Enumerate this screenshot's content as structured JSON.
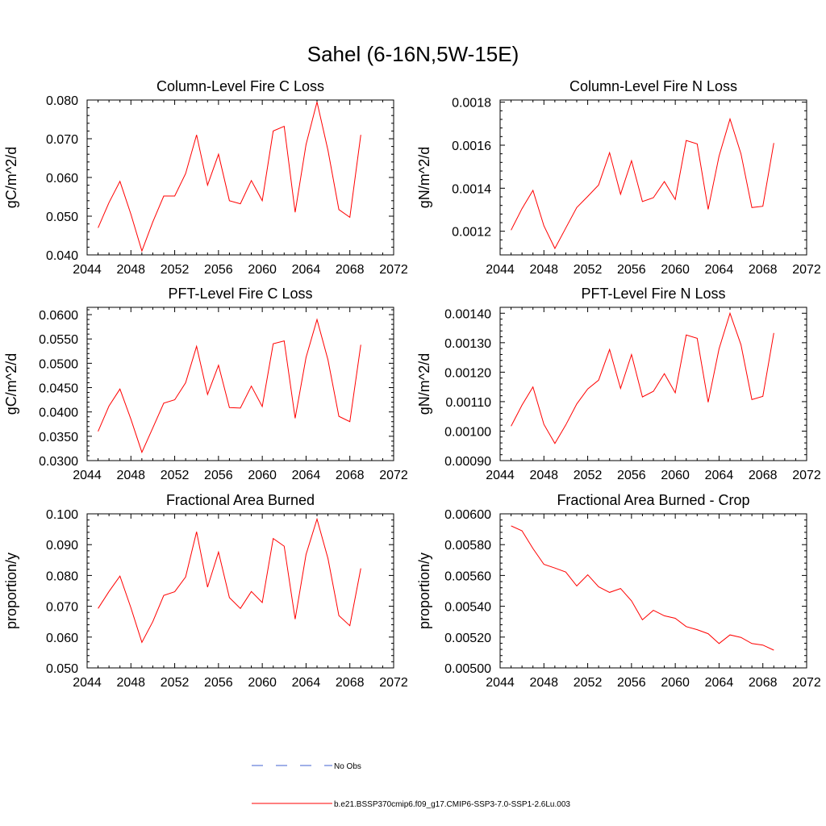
{
  "figure": {
    "title": "Sahel (6-16N,5W-15E)"
  },
  "legend": {
    "items": [
      {
        "label": "No Obs",
        "color": "#4060d0",
        "dash": true
      },
      {
        "label": "b.e21.BSSP370cmip6.f09_g17.CMIP6-SSP3-7.0-SSP1-2.6Lu.003",
        "color": "#ff0000",
        "dash": false
      }
    ]
  },
  "chart_data": [
    {
      "type": "line",
      "title": "Column-Level Fire C Loss",
      "xlabel": "",
      "ylabel": "gC/m^2/d",
      "xlim": [
        2044,
        2072
      ],
      "ylim": [
        0.04,
        0.08
      ],
      "xticks": [
        "2044",
        "2048",
        "2052",
        "2056",
        "2060",
        "2064",
        "2068",
        "2072"
      ],
      "yticks": [
        "0.040",
        "0.050",
        "0.060",
        "0.070",
        "0.080"
      ],
      "grid": false,
      "color": "#ff0000",
      "x": [
        2045,
        2046,
        2047,
        2048,
        2049,
        2050,
        2051,
        2052,
        2053,
        2054,
        2055,
        2056,
        2057,
        2058,
        2059,
        2060,
        2061,
        2062,
        2063,
        2064,
        2065,
        2066,
        2067,
        2068,
        2069
      ],
      "values": [
        0.047,
        0.0535,
        0.059,
        0.0505,
        0.041,
        0.0485,
        0.0552,
        0.0552,
        0.061,
        0.071,
        0.058,
        0.066,
        0.054,
        0.0532,
        0.0592,
        0.054,
        0.072,
        0.0732,
        0.051,
        0.0685,
        0.0795,
        0.067,
        0.0517,
        0.0497,
        0.071
      ]
    },
    {
      "type": "line",
      "title": "Column-Level Fire N Loss",
      "xlabel": "",
      "ylabel": "gN/m^2/d",
      "xlim": [
        2044,
        2072
      ],
      "ylim": [
        0.00109,
        0.00181
      ],
      "xticks": [
        "2044",
        "2048",
        "2052",
        "2056",
        "2060",
        "2064",
        "2068",
        "2072"
      ],
      "yticks": [
        "0.0012",
        "0.0014",
        "0.0016",
        "0.0018"
      ],
      "ytick_values": [
        0.0012,
        0.0014,
        0.0016,
        0.0018
      ],
      "grid": false,
      "color": "#ff0000",
      "x": [
        2045,
        2046,
        2047,
        2048,
        2049,
        2050,
        2051,
        2052,
        2053,
        2054,
        2055,
        2056,
        2057,
        2058,
        2059,
        2060,
        2061,
        2062,
        2063,
        2064,
        2065,
        2066,
        2067,
        2068,
        2069
      ],
      "values": [
        0.001205,
        0.001305,
        0.00139,
        0.001225,
        0.00112,
        0.001215,
        0.00131,
        0.001362,
        0.001415,
        0.001565,
        0.001372,
        0.001528,
        0.001338,
        0.001356,
        0.001431,
        0.001348,
        0.001622,
        0.001606,
        0.001302,
        0.001549,
        0.001722,
        0.00156,
        0.00131,
        0.001316,
        0.00161
      ]
    },
    {
      "type": "line",
      "title": "PFT-Level Fire C Loss",
      "xlabel": "",
      "ylabel": "gC/m^2/d",
      "xlim": [
        2044,
        2072
      ],
      "ylim": [
        0.03,
        0.0615
      ],
      "xticks": [
        "2044",
        "2048",
        "2052",
        "2056",
        "2060",
        "2064",
        "2068",
        "2072"
      ],
      "yticks": [
        "0.0300",
        "0.0350",
        "0.0400",
        "0.0450",
        "0.0500",
        "0.0550",
        "0.0600"
      ],
      "grid": false,
      "color": "#ff0000",
      "x": [
        2045,
        2046,
        2047,
        2048,
        2049,
        2050,
        2051,
        2052,
        2053,
        2054,
        2055,
        2056,
        2057,
        2058,
        2059,
        2060,
        2061,
        2062,
        2063,
        2064,
        2065,
        2066,
        2067,
        2068,
        2069
      ],
      "values": [
        0.036,
        0.0412,
        0.0447,
        0.0385,
        0.0317,
        0.0367,
        0.0418,
        0.0425,
        0.046,
        0.0535,
        0.0436,
        0.0496,
        0.0409,
        0.0408,
        0.0453,
        0.0411,
        0.054,
        0.0546,
        0.0387,
        0.0512,
        0.059,
        0.0507,
        0.0391,
        0.038,
        0.0538
      ]
    },
    {
      "type": "line",
      "title": "PFT-Level Fire N Loss",
      "xlabel": "",
      "ylabel": "gN/m^2/d",
      "xlim": [
        2044,
        2072
      ],
      "ylim": [
        0.0009,
        0.00142
      ],
      "xticks": [
        "2044",
        "2048",
        "2052",
        "2056",
        "2060",
        "2064",
        "2068",
        "2072"
      ],
      "yticks": [
        "0.00090",
        "0.00100",
        "0.00110",
        "0.00120",
        "0.00130",
        "0.00140"
      ],
      "grid": false,
      "color": "#ff0000",
      "x": [
        2045,
        2046,
        2047,
        2048,
        2049,
        2050,
        2051,
        2052,
        2053,
        2054,
        2055,
        2056,
        2057,
        2058,
        2059,
        2060,
        2061,
        2062,
        2063,
        2064,
        2065,
        2066,
        2067,
        2068,
        2069
      ],
      "values": [
        0.001017,
        0.001088,
        0.00115,
        0.001023,
        0.000958,
        0.001021,
        0.001092,
        0.001143,
        0.001173,
        0.001277,
        0.001145,
        0.00126,
        0.001116,
        0.001135,
        0.001195,
        0.00113,
        0.001326,
        0.001315,
        0.001098,
        0.001279,
        0.0014,
        0.001293,
        0.001107,
        0.001118,
        0.001333
      ]
    },
    {
      "type": "line",
      "title": "Fractional Area Burned",
      "xlabel": "",
      "ylabel": "proportion/y",
      "xlim": [
        2044,
        2072
      ],
      "ylim": [
        0.05,
        0.1
      ],
      "xticks": [
        "2044",
        "2048",
        "2052",
        "2056",
        "2060",
        "2064",
        "2068",
        "2072"
      ],
      "yticks": [
        "0.050",
        "0.060",
        "0.070",
        "0.080",
        "0.090",
        "0.100"
      ],
      "grid": false,
      "color": "#ff0000",
      "x": [
        2045,
        2046,
        2047,
        2048,
        2049,
        2050,
        2051,
        2052,
        2053,
        2054,
        2055,
        2056,
        2057,
        2058,
        2059,
        2060,
        2061,
        2062,
        2063,
        2064,
        2065,
        2066,
        2067,
        2068,
        2069
      ],
      "values": [
        0.0693,
        0.0748,
        0.0798,
        0.0695,
        0.0583,
        0.065,
        0.0735,
        0.0747,
        0.0795,
        0.0942,
        0.0762,
        0.0876,
        0.0728,
        0.0693,
        0.0748,
        0.0712,
        0.092,
        0.0895,
        0.0658,
        0.0868,
        0.0983,
        0.0855,
        0.067,
        0.0637,
        0.0823
      ]
    },
    {
      "type": "line",
      "title": "Fractional Area Burned - Crop",
      "xlabel": "",
      "ylabel": "proportion/y",
      "xlim": [
        2044,
        2072
      ],
      "ylim": [
        0.005,
        0.006
      ],
      "xticks": [
        "2044",
        "2048",
        "2052",
        "2056",
        "2060",
        "2064",
        "2068",
        "2072"
      ],
      "yticks": [
        "0.00500",
        "0.00520",
        "0.00540",
        "0.00560",
        "0.00580",
        "0.00600"
      ],
      "grid": false,
      "color": "#ff0000",
      "x": [
        2045,
        2046,
        2047,
        2048,
        2049,
        2050,
        2051,
        2052,
        2053,
        2054,
        2055,
        2056,
        2057,
        2058,
        2059,
        2060,
        2061,
        2062,
        2063,
        2064,
        2065,
        2066,
        2067,
        2068,
        2069
      ],
      "values": [
        0.005922,
        0.00589,
        0.005775,
        0.005672,
        0.005648,
        0.005622,
        0.005532,
        0.005604,
        0.005526,
        0.00549,
        0.005515,
        0.005435,
        0.005312,
        0.005374,
        0.005338,
        0.005322,
        0.005268,
        0.005248,
        0.005222,
        0.005158,
        0.005214,
        0.005198,
        0.005158,
        0.005148,
        0.005115
      ]
    }
  ]
}
